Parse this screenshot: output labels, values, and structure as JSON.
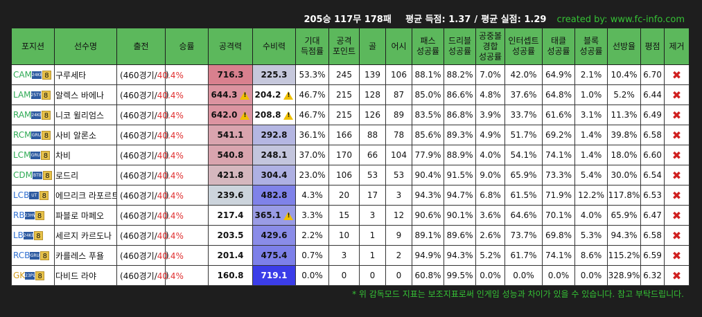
{
  "summary": {
    "record": "205승 117무 178패",
    "avg_scored": "평균 득점: 1.37",
    "separator": "/",
    "avg_conceded": "평균 실점: 1.29",
    "credit": "created by: www.fc-info.com"
  },
  "columns": [
    "포지션",
    "선수명",
    "출전",
    "승률",
    "공격력",
    "수비력",
    "기대\n득점률",
    "공격\n포인트",
    "골",
    "어시",
    "패스\n성공률",
    "드리블\n성공률",
    "공중볼\n경합\n성공률",
    "인터셉트\n성공률",
    "태클\n성공률",
    "블록\n성공률",
    "선방율",
    "평점",
    "제거"
  ],
  "colors": {
    "header_bg": "#5cb85c",
    "attack_high": "#d97a88",
    "defense_high": "#3b3de8",
    "position_green": "#2eaa55",
    "position_blue": "#2f6fd0",
    "position_gold": "#d19a1a",
    "red_text": "#e03030"
  },
  "rows": [
    {
      "pos": "CAM",
      "pos_color": "#2eaa55",
      "season": "24KB",
      "level": "8",
      "name": "구루세타",
      "games": "460경기",
      "winrate": "40.4%",
      "attack": "716.3",
      "defense": "225.3",
      "atk_bg": "#d9808e",
      "def_bg": "#c6c8dc",
      "atk_warn": false,
      "def_warn": false,
      "xg": "53.3%",
      "ap": "245",
      "goals": "139",
      "assists": "106",
      "pass": "88.1%",
      "dribble": "88.2%",
      "aerial": "7.0%",
      "intercept": "42.0%",
      "tackle": "64.9%",
      "block": "2.1%",
      "save": "10.4%",
      "rating": "6.70"
    },
    {
      "pos": "LAM",
      "pos_color": "#2eaa55",
      "season": "25TY",
      "level": "8",
      "name": "알렉스 바에나",
      "games": "460경기",
      "winrate": "40.4%",
      "attack": "644.3",
      "defense": "204.2",
      "atk_bg": "#dc93a0",
      "def_bg": "#ffffff",
      "atk_warn": true,
      "def_warn": true,
      "xg": "46.7%",
      "ap": "215",
      "goals": "128",
      "assists": "87",
      "pass": "85.0%",
      "dribble": "86.6%",
      "aerial": "4.8%",
      "intercept": "37.6%",
      "tackle": "64.8%",
      "block": "1.0%",
      "save": "5.2%",
      "rating": "6.44"
    },
    {
      "pos": "RAM",
      "pos_color": "#2eaa55",
      "season": "24KB",
      "level": "8",
      "name": "니코 윌리엄스",
      "games": "460경기",
      "winrate": "40.4%",
      "attack": "642.0",
      "defense": "208.8",
      "atk_bg": "#dc94a1",
      "def_bg": "#ffffff",
      "atk_warn": true,
      "def_warn": true,
      "xg": "46.7%",
      "ap": "215",
      "goals": "126",
      "assists": "89",
      "pass": "83.5%",
      "dribble": "86.8%",
      "aerial": "3.9%",
      "intercept": "33.7%",
      "tackle": "61.6%",
      "block": "3.1%",
      "save": "11.3%",
      "rating": "6.49"
    },
    {
      "pos": "RCM",
      "pos_color": "#2eaa55",
      "season": "GRU",
      "level": "8",
      "name": "사비 알론소",
      "games": "460경기",
      "winrate": "40.4%",
      "attack": "541.1",
      "defense": "292.8",
      "atk_bg": "#d9a4ae",
      "def_bg": "#b4b6e2",
      "atk_warn": false,
      "def_warn": false,
      "xg": "36.1%",
      "ap": "166",
      "goals": "88",
      "assists": "78",
      "pass": "85.6%",
      "dribble": "89.3%",
      "aerial": "4.9%",
      "intercept": "51.7%",
      "tackle": "69.2%",
      "block": "1.4%",
      "save": "39.8%",
      "rating": "6.58"
    },
    {
      "pos": "LCM",
      "pos_color": "#2eaa55",
      "season": "GRU",
      "level": "8",
      "name": "차비",
      "games": "460경기",
      "winrate": "40.4%",
      "attack": "540.8",
      "defense": "248.1",
      "atk_bg": "#d9a4ae",
      "def_bg": "#c3c5dd",
      "atk_warn": false,
      "def_warn": false,
      "xg": "37.0%",
      "ap": "170",
      "goals": "66",
      "assists": "104",
      "pass": "77.9%",
      "dribble": "88.9%",
      "aerial": "4.0%",
      "intercept": "54.1%",
      "tackle": "74.1%",
      "block": "1.4%",
      "save": "18.0%",
      "rating": "6.60"
    },
    {
      "pos": "CDM",
      "pos_color": "#2eaa55",
      "season": "BTB",
      "level": "8",
      "name": "로드리",
      "games": "460경기",
      "winrate": "40.4%",
      "attack": "421.8",
      "defense": "304.4",
      "atk_bg": "#d5b7be",
      "def_bg": "#aeb0e3",
      "atk_warn": false,
      "def_warn": false,
      "xg": "23.0%",
      "ap": "106",
      "goals": "53",
      "assists": "53",
      "pass": "90.4%",
      "dribble": "91.5%",
      "aerial": "9.0%",
      "intercept": "65.9%",
      "tackle": "73.3%",
      "block": "5.4%",
      "save": "30.0%",
      "rating": "6.54"
    },
    {
      "pos": "LCB",
      "pos_color": "#2f6fd0",
      "season": "UT",
      "level": "8",
      "name": "에므리크 라포르트",
      "games": "460경기",
      "winrate": "40.4%",
      "attack": "239.6",
      "defense": "482.8",
      "atk_bg": "#ccd4dc",
      "def_bg": "#7f82e9",
      "atk_warn": false,
      "def_warn": false,
      "xg": "4.3%",
      "ap": "20",
      "goals": "17",
      "assists": "3",
      "pass": "94.3%",
      "dribble": "94.7%",
      "aerial": "6.8%",
      "intercept": "61.5%",
      "tackle": "71.9%",
      "block": "12.2%",
      "save": "117.8%",
      "rating": "6.53"
    },
    {
      "pos": "RB",
      "pos_color": "#2f6fd0",
      "season": "23HW",
      "level": "8",
      "name": "파블로 마페오",
      "games": "460경기",
      "winrate": "40.4%",
      "attack": "217.4",
      "defense": "365.1",
      "atk_bg": "#ffffff",
      "def_bg": "#9a9ce6",
      "atk_warn": false,
      "def_warn": true,
      "xg": "3.3%",
      "ap": "15",
      "goals": "3",
      "assists": "12",
      "pass": "90.6%",
      "dribble": "90.1%",
      "aerial": "3.6%",
      "intercept": "64.6%",
      "tackle": "70.1%",
      "block": "4.0%",
      "save": "65.9%",
      "rating": "6.47"
    },
    {
      "pos": "LB",
      "pos_color": "#2f6fd0",
      "season": "24KB",
      "level": "8",
      "name": "세르지 카르도나",
      "games": "460경기",
      "winrate": "40.4%",
      "attack": "203.5",
      "defense": "429.6",
      "atk_bg": "#ffffff",
      "def_bg": "#8a8ce8",
      "atk_warn": false,
      "def_warn": false,
      "xg": "2.2%",
      "ap": "10",
      "goals": "1",
      "assists": "9",
      "pass": "89.1%",
      "dribble": "89.6%",
      "aerial": "2.6%",
      "intercept": "73.7%",
      "tackle": "69.8%",
      "block": "5.3%",
      "save": "94.3%",
      "rating": "6.58"
    },
    {
      "pos": "RCB",
      "pos_color": "#2f6fd0",
      "season": "GRU",
      "level": "8",
      "name": "카를레스 푸욜",
      "games": "460경기",
      "winrate": "40.4%",
      "attack": "201.4",
      "defense": "475.4",
      "atk_bg": "#ffffff",
      "def_bg": "#7d80e9",
      "atk_warn": false,
      "def_warn": false,
      "xg": "0.7%",
      "ap": "3",
      "goals": "1",
      "assists": "2",
      "pass": "94.9%",
      "dribble": "94.3%",
      "aerial": "5.2%",
      "intercept": "61.7%",
      "tackle": "74.1%",
      "block": "8.6%",
      "save": "115.2%",
      "rating": "6.59"
    },
    {
      "pos": "GK",
      "pos_color": "#d19a1a",
      "season": "23PL",
      "level": "8",
      "name": "다비드 라야",
      "games": "460경기",
      "winrate": "40.4%",
      "attack": "160.8",
      "defense": "719.1",
      "atk_bg": "#ffffff",
      "def_bg": "#3b3de8",
      "atk_warn": false,
      "def_warn": false,
      "xg": "0.0%",
      "ap": "0",
      "goals": "0",
      "assists": "0",
      "pass": "60.8%",
      "dribble": "99.5%",
      "aerial": "0.0%",
      "intercept": "0.0%",
      "tackle": "0.0%",
      "block": "0.0%",
      "save": "328.9%",
      "rating": "6.32"
    }
  ],
  "footnote": "* 위 감독모드 지표는 보조지표로써 인게임 성능과 차이가 있을 수 있습니다. 참고 부탁드립니다."
}
